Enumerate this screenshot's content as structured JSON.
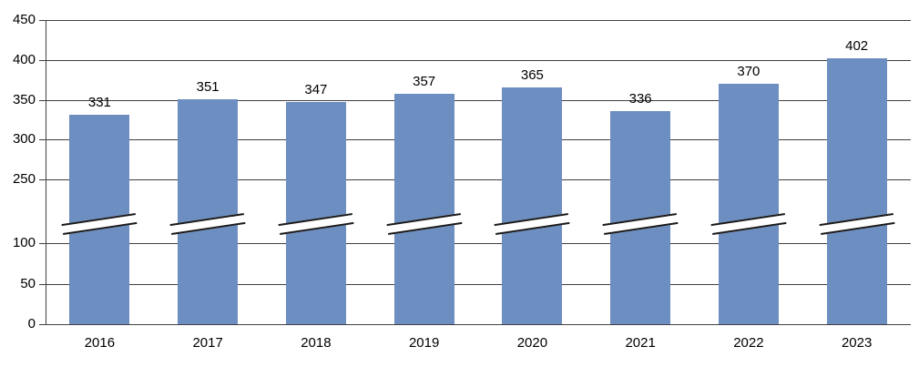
{
  "chart_data": {
    "type": "bar",
    "title": "",
    "xlabel": "",
    "ylabel": "",
    "categories": [
      "2016",
      "2017",
      "2018",
      "2019",
      "2020",
      "2021",
      "2022",
      "2023"
    ],
    "series": [
      {
        "name": "value",
        "values": [
          331,
          351,
          347,
          357,
          365,
          336,
          370,
          402
        ]
      }
    ],
    "data_labels": [
      "331",
      "351",
      "347",
      "357",
      "365",
      "336",
      "370",
      "402"
    ],
    "y_ticks": [
      0,
      50,
      100,
      250,
      300,
      350,
      400,
      450
    ],
    "y_tick_labels": [
      "0",
      "50",
      "100",
      "250",
      "300",
      "350",
      "400",
      "450"
    ],
    "axis_break": {
      "from": 100,
      "to": 250
    },
    "grid": true,
    "legend": false,
    "colors": {
      "bar_fill": "#6D8EC0",
      "grid_line": "#404040",
      "text": "#000000",
      "background": "#FFFFFF",
      "break_line": "#1A1A1A"
    }
  }
}
